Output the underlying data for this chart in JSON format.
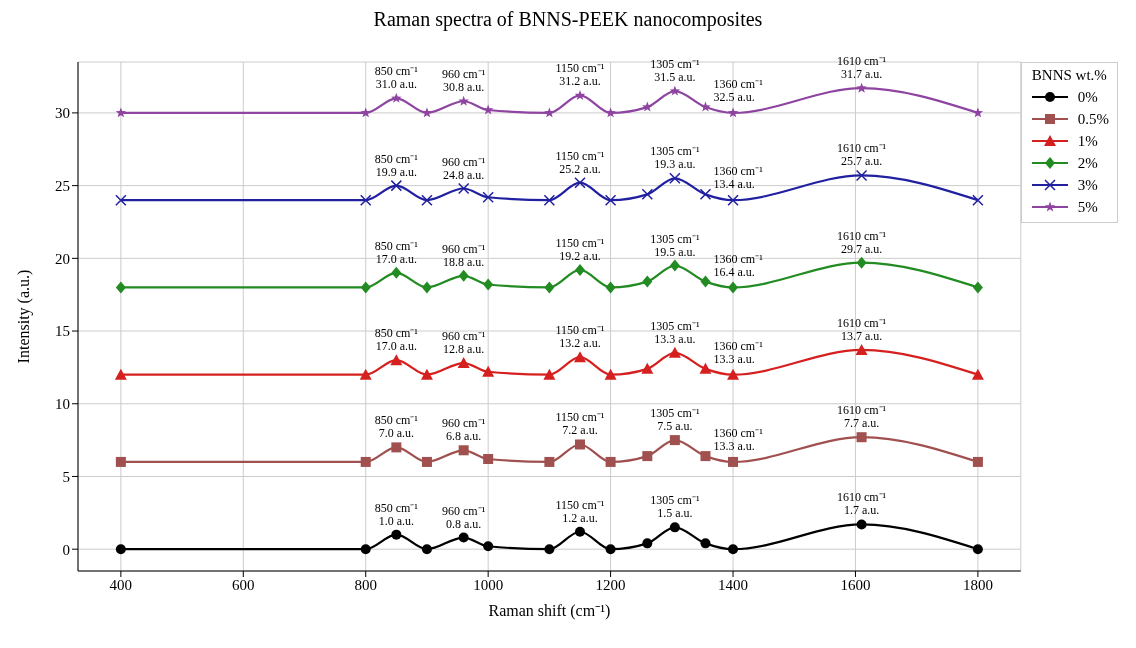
{
  "chart_data": {
    "type": "line",
    "title": "Raman spectra of BNNS-PEEK nanocomposites",
    "xlabel": "Raman shift (cm⁻¹)",
    "ylabel": "Intensity (a.u.)",
    "legend_title": "BNNS wt.%",
    "x": [
      400,
      800,
      850,
      900,
      960,
      1000,
      1100,
      1150,
      1200,
      1260,
      1305,
      1355,
      1400,
      1610,
      1800
    ],
    "series": [
      {
        "name": "0%",
        "color": "#000000",
        "marker": "circle",
        "values": [
          0,
          0,
          1.0,
          0,
          0.8,
          0.2,
          0,
          1.2,
          0,
          0.4,
          1.5,
          0.4,
          0,
          1.7,
          0
        ]
      },
      {
        "name": "0.5%",
        "color": "#a0504f",
        "marker": "square",
        "values": [
          6,
          6,
          7.0,
          6,
          6.8,
          6.2,
          6,
          7.2,
          6,
          6.4,
          7.5,
          6.4,
          6,
          7.7,
          6
        ]
      },
      {
        "name": "1%",
        "color": "#d62020",
        "marker": "triangle",
        "values": [
          12,
          12,
          13.0,
          12,
          12.8,
          12.2,
          12,
          13.2,
          12,
          12.4,
          13.5,
          12.4,
          12,
          13.7,
          12
        ]
      },
      {
        "name": "2%",
        "color": "#228b22",
        "marker": "diamond",
        "values": [
          18,
          18,
          19.0,
          18,
          18.8,
          18.2,
          18,
          19.2,
          18,
          18.4,
          19.5,
          18.4,
          18,
          19.7,
          18
        ]
      },
      {
        "name": "3%",
        "color": "#2020a0",
        "marker": "cross",
        "values": [
          24,
          24,
          25.0,
          24,
          24.8,
          24.2,
          24,
          25.2,
          24,
          24.4,
          25.5,
          24.4,
          24,
          25.7,
          24
        ]
      },
      {
        "name": "5%",
        "color": "#8e44a0",
        "marker": "star",
        "values": [
          30,
          30,
          31.0,
          30,
          30.8,
          30.2,
          30,
          31.2,
          30,
          30.4,
          31.5,
          30.4,
          30,
          31.7,
          30
        ]
      }
    ],
    "xlim": [
      330,
      1870
    ],
    "ylim": [
      -1.5,
      33.5
    ],
    "xticks": [
      400,
      600,
      800,
      1000,
      1200,
      1400,
      1600,
      1800
    ],
    "yticks": [
      0,
      5,
      10,
      15,
      20,
      25,
      30
    ],
    "grid": true,
    "legend": "top right",
    "line_style": "solid",
    "annotations": [
      {
        "text": "850 cm⁻¹\n1.0 a.u.",
        "x": 850,
        "y": 1.0
      },
      {
        "text": "960 cm⁻¹\n0.8 a.u.",
        "x": 960,
        "y": 0.8
      },
      {
        "text": "1150 cm⁻¹\n1.2 a.u.",
        "x": 1150,
        "y": 1.2
      },
      {
        "text": "1305 cm⁻¹\n1.5 a.u.",
        "x": 1305,
        "y": 1.5
      },
      {
        "text": "1610 cm⁻¹\n1.7 a.u.",
        "x": 1610,
        "y": 1.7
      },
      {
        "text": "850 cm⁻¹\n7.0 a.u.",
        "x": 850,
        "y": 7.0
      },
      {
        "text": "960 cm⁻¹\n6.8 a.u.",
        "x": 960,
        "y": 6.8
      },
      {
        "text": "1150 cm⁻¹\n7.2 a.u.",
        "x": 1150,
        "y": 7.2
      },
      {
        "text": "1305 cm⁻¹\n7.5 a.u.",
        "x": 1305,
        "y": 7.5
      },
      {
        "text": "1360 cm⁻¹\n13.3 a.u.",
        "x": 1355,
        "y": 6.4
      },
      {
        "text": "1610 cm⁻¹\n7.7 a.u.",
        "x": 1610,
        "y": 7.7
      },
      {
        "text": "850 cm⁻¹\n17.0 a.u.",
        "x": 850,
        "y": 13.0
      },
      {
        "text": "960 cm⁻¹\n12.8 a.u.",
        "x": 960,
        "y": 12.8
      },
      {
        "text": "1150 cm⁻¹\n13.2 a.u.",
        "x": 1150,
        "y": 13.2
      },
      {
        "text": "1305 cm⁻¹\n13.3 a.u.",
        "x": 1305,
        "y": 13.5
      },
      {
        "text": "1360 cm⁻¹\n13.3 a.u.",
        "x": 1355,
        "y": 12.4
      },
      {
        "text": "1610 cm⁻¹\n13.7 a.u.",
        "x": 1610,
        "y": 13.7
      },
      {
        "text": "850 cm⁻¹\n17.0 a.u.",
        "x": 850,
        "y": 19.0
      },
      {
        "text": "960 cm⁻¹\n18.8 a.u.",
        "x": 960,
        "y": 18.8
      },
      {
        "text": "1150 cm⁻¹\n19.2 a.u.",
        "x": 1150,
        "y": 19.2
      },
      {
        "text": "1305 cm⁻¹\n19.5 a.u.",
        "x": 1305,
        "y": 19.5
      },
      {
        "text": "1360 cm⁻¹\n16.4 a.u.",
        "x": 1355,
        "y": 18.4
      },
      {
        "text": "1610 cm⁻¹\n29.7 a.u.",
        "x": 1610,
        "y": 19.7
      },
      {
        "text": "850 cm⁻¹\n19.9 a.u.",
        "x": 850,
        "y": 25.0
      },
      {
        "text": "960 cm⁻¹\n24.8 a.u.",
        "x": 960,
        "y": 24.8
      },
      {
        "text": "1150 cm⁻¹\n25.2 a.u.",
        "x": 1150,
        "y": 25.2
      },
      {
        "text": "1305 cm⁻¹\n19.3 a.u.",
        "x": 1305,
        "y": 25.5
      },
      {
        "text": "1360 cm⁻¹\n13.4 a.u.",
        "x": 1355,
        "y": 24.4
      },
      {
        "text": "1610 cm⁻¹\n25.7 a.u.",
        "x": 1610,
        "y": 25.7
      },
      {
        "text": "850 cm⁻¹\n31.0 a.u.",
        "x": 850,
        "y": 31.0
      },
      {
        "text": "960 cm⁻¹\n30.8 a.u.",
        "x": 960,
        "y": 30.8
      },
      {
        "text": "1150 cm⁻¹\n31.2 a.u.",
        "x": 1150,
        "y": 31.2
      },
      {
        "text": "1305 cm⁻¹\n31.5 a.u.",
        "x": 1305,
        "y": 31.5
      },
      {
        "text": "1360 cm⁻¹\n32.5 a.u.",
        "x": 1355,
        "y": 30.4
      },
      {
        "text": "1610 cm⁻¹\n31.7 a.u.",
        "x": 1610,
        "y": 31.7
      }
    ]
  }
}
